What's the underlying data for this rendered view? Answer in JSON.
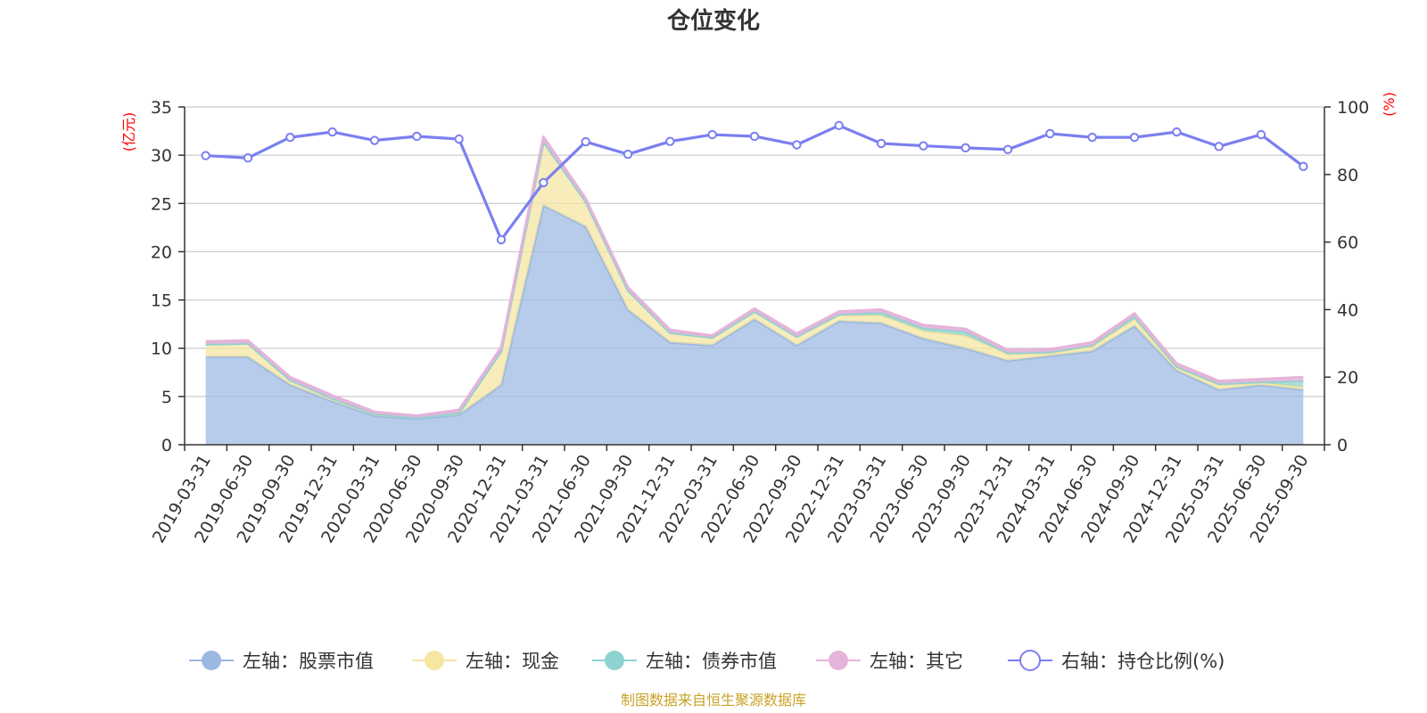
{
  "chart_data": {
    "type": "area",
    "title": "仓位变化",
    "left_axis_unit": "(亿元)",
    "right_axis_unit": "(%)",
    "left_ylim": [
      0,
      35
    ],
    "left_ticks": [
      0,
      5,
      10,
      15,
      20,
      25,
      30,
      35
    ],
    "right_ylim": [
      0,
      100
    ],
    "right_ticks": [
      0,
      20,
      40,
      60,
      80,
      100
    ],
    "categories": [
      "2019-03-31",
      "2019-06-30",
      "2019-09-30",
      "2019-12-31",
      "2020-03-31",
      "2020-06-30",
      "2020-09-30",
      "2020-12-31",
      "2021-03-31",
      "2021-06-30",
      "2021-09-30",
      "2021-12-31",
      "2022-03-31",
      "2022-06-30",
      "2022-09-30",
      "2022-12-31",
      "2023-03-31",
      "2023-06-30",
      "2023-09-30",
      "2023-12-31",
      "2024-03-31",
      "2024-06-30",
      "2024-09-30",
      "2024-12-31",
      "2025-03-31",
      "2025-06-30",
      "2025-09-30"
    ],
    "series": [
      {
        "name": "左轴：股票市值",
        "axis": "left",
        "kind": "stack",
        "color": "#9bb8e2",
        "values": [
          9.1,
          9.1,
          6.2,
          4.5,
          3.0,
          2.7,
          3.1,
          6.2,
          24.8,
          22.6,
          14.0,
          10.6,
          10.3,
          13.0,
          10.3,
          12.8,
          12.6,
          11.0,
          10.0,
          8.7,
          9.2,
          9.7,
          12.3,
          7.7,
          5.7,
          6.2,
          5.7
        ]
      },
      {
        "name": "左轴：现金",
        "axis": "left",
        "kind": "stack",
        "color": "#f5e6a0",
        "values": [
          1.3,
          1.4,
          0.5,
          0.3,
          0.2,
          0.1,
          0.2,
          3.5,
          6.6,
          2.6,
          2.0,
          1.0,
          0.8,
          0.8,
          0.9,
          0.6,
          0.8,
          0.8,
          1.3,
          0.7,
          0.3,
          0.5,
          0.7,
          0.3,
          0.5,
          0.2,
          0.3
        ]
      },
      {
        "name": "左轴：债券市值",
        "axis": "left",
        "kind": "stack",
        "color": "#8fd3d0",
        "values": [
          0.0,
          0.0,
          0.0,
          0.0,
          0.0,
          0.0,
          0.0,
          0.0,
          0.0,
          0.0,
          0.0,
          0.0,
          0.0,
          0.0,
          0.0,
          0.1,
          0.3,
          0.3,
          0.4,
          0.1,
          0.1,
          0.1,
          0.3,
          0.1,
          0.1,
          0.1,
          0.6
        ]
      },
      {
        "name": "左轴：其它",
        "axis": "left",
        "kind": "stack",
        "color": "#e6b3d9",
        "values": [
          0.3,
          0.3,
          0.3,
          0.3,
          0.2,
          0.2,
          0.3,
          0.4,
          0.5,
          0.3,
          0.3,
          0.3,
          0.2,
          0.3,
          0.3,
          0.3,
          0.3,
          0.3,
          0.3,
          0.3,
          0.3,
          0.3,
          0.3,
          0.3,
          0.3,
          0.3,
          0.4
        ]
      },
      {
        "name": "右轴：持仓比例(%)",
        "axis": "right",
        "kind": "line",
        "color": "#7b7ff0",
        "values": [
          85.6,
          84.9,
          91.0,
          92.6,
          90.1,
          91.3,
          90.5,
          60.7,
          77.6,
          89.7,
          86.0,
          89.8,
          91.8,
          91.3,
          88.8,
          94.5,
          89.2,
          88.5,
          87.9,
          87.4,
          92.1,
          91.0,
          91.0,
          92.6,
          88.3,
          91.8,
          82.4
        ]
      }
    ],
    "legend_position": "bottom",
    "grid": true
  },
  "footer": {
    "source": "制图数据来自恒生聚源数据库"
  }
}
